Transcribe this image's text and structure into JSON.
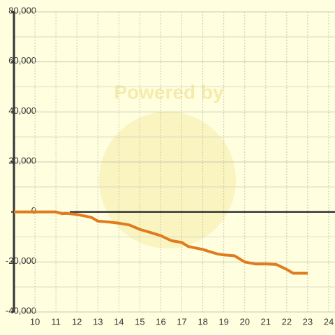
{
  "chart_data": {
    "type": "line",
    "watermark": "Powered by",
    "x": [
      9,
      10,
      11,
      11.3,
      11.5,
      12,
      12.3,
      12.7,
      13,
      13.5,
      14,
      14.5,
      15,
      15.5,
      16,
      16.5,
      17,
      17.3,
      18,
      18.3,
      18.7,
      19,
      19.5,
      20,
      20.5,
      21,
      21.5,
      22,
      22.3,
      23
    ],
    "series": [
      {
        "color": "#e07b20",
        "values": [
          0,
          0,
          0,
          -700,
          -600,
          -1000,
          -1500,
          -2200,
          -3700,
          -4000,
          -4500,
          -5200,
          -7000,
          -8200,
          -9500,
          -11500,
          -12200,
          -13800,
          -15000,
          -15800,
          -16800,
          -17200,
          -17500,
          -20000,
          -20800,
          -20800,
          -21000,
          -23000,
          -24500,
          -24500
        ]
      }
    ],
    "xlim": [
      9,
      24.3
    ],
    "xticks": [
      10,
      11,
      12,
      13,
      14,
      15,
      16,
      17,
      18,
      19,
      20,
      21,
      22,
      23,
      24
    ],
    "ylim": [
      -40000,
      80000
    ],
    "yticks": [
      {
        "value": 80000,
        "label": "80,000"
      },
      {
        "value": 60000,
        "label": "60,000"
      },
      {
        "value": 40000,
        "label": "40,000"
      },
      {
        "value": 20000,
        "label": "20,000"
      },
      0,
      {
        "value": -20000,
        "label": "-20,000"
      },
      {
        "value": -40000,
        "label": "-40,000"
      }
    ],
    "minor_yticks": [
      70000,
      50000,
      30000,
      10000,
      -10000,
      -30000
    ],
    "grid": true
  }
}
